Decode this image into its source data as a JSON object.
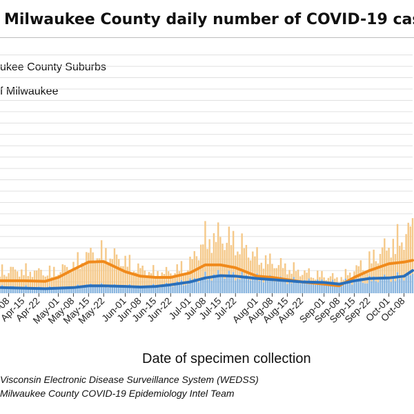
{
  "title": "Milwaukee County daily number of COVID-19 case",
  "xlabel": "Date of specimen collection",
  "sources": [
    "Visconsin Electronic Disease Surveillance System (WEDSS)",
    "Milwaukee County COVID-19 Epidemiology Intel Team"
  ],
  "legend": {
    "suburbs": "ukee County Suburbs",
    "city": "f Milwaukee"
  },
  "colors": {
    "suburbs_bar": "#f5c98a",
    "suburbs_line": "#f08a1c",
    "city_bar": "#8ab6df",
    "city_line": "#2a6fba",
    "grid": "#e0e0e0"
  },
  "chart_data": {
    "type": "bar",
    "x_label": "Date of specimen collection",
    "ylim": [
      0,
      450
    ],
    "grid": true,
    "legend_position": "top-left",
    "x_start": "2020-04-04",
    "x_end": "2020-10-12",
    "tick_labels": [
      "Apr-08",
      "Apr-15",
      "Apr-22",
      "May-01",
      "May-08",
      "May-15",
      "May-22",
      "Jun-01",
      "Jun-08",
      "Jun-15",
      "Jun-22",
      "Jul-01",
      "Jul-08",
      "Jul-15",
      "Jul-22",
      "Aug-01",
      "Aug-08",
      "Aug-15",
      "Aug-22",
      "Sep-01",
      "Sep-08",
      "Sep-15",
      "Sep-22",
      "Oct-01",
      "Oct-08"
    ],
    "tick_dates": [
      "2020-04-08",
      "2020-04-15",
      "2020-04-22",
      "2020-05-01",
      "2020-05-08",
      "2020-05-15",
      "2020-05-22",
      "2020-06-01",
      "2020-06-08",
      "2020-06-15",
      "2020-06-22",
      "2020-07-01",
      "2020-07-08",
      "2020-07-15",
      "2020-07-22",
      "2020-08-01",
      "2020-08-08",
      "2020-08-15",
      "2020-08-22",
      "2020-09-01",
      "2020-09-08",
      "2020-09-15",
      "2020-09-22",
      "2020-10-01",
      "2020-10-08"
    ],
    "series": [
      {
        "name": "City of Milwaukee",
        "style": "stacked-bar-bottom",
        "points": [
          [
            "2020-04-04",
            12
          ],
          [
            "2020-04-15",
            11
          ],
          [
            "2020-04-25",
            10
          ],
          [
            "2020-05-01",
            10
          ],
          [
            "2020-05-08",
            11
          ],
          [
            "2020-05-15",
            15
          ],
          [
            "2020-05-22",
            14
          ],
          [
            "2020-06-01",
            13
          ],
          [
            "2020-06-08",
            12
          ],
          [
            "2020-06-15",
            13
          ],
          [
            "2020-06-22",
            16
          ],
          [
            "2020-07-01",
            22
          ],
          [
            "2020-07-08",
            30
          ],
          [
            "2020-07-15",
            34
          ],
          [
            "2020-07-22",
            32
          ],
          [
            "2020-08-01",
            28
          ],
          [
            "2020-08-08",
            26
          ],
          [
            "2020-08-15",
            23
          ],
          [
            "2020-08-22",
            22
          ],
          [
            "2020-09-01",
            20
          ],
          [
            "2020-09-08",
            19
          ],
          [
            "2020-09-15",
            22
          ],
          [
            "2020-09-22",
            25
          ],
          [
            "2020-10-01",
            28
          ],
          [
            "2020-10-08",
            30
          ],
          [
            "2020-10-12",
            31
          ]
        ]
      },
      {
        "name": "Milwaukee County Suburbs",
        "style": "stacked-bar-top",
        "points": [
          [
            "2020-04-04",
            30
          ],
          [
            "2020-04-15",
            30
          ],
          [
            "2020-04-25",
            28
          ],
          [
            "2020-05-01",
            31
          ],
          [
            "2020-05-08",
            40
          ],
          [
            "2020-05-15",
            55
          ],
          [
            "2020-05-22",
            60
          ],
          [
            "2020-06-01",
            45
          ],
          [
            "2020-06-08",
            32
          ],
          [
            "2020-06-15",
            25
          ],
          [
            "2020-06-22",
            22
          ],
          [
            "2020-07-01",
            32
          ],
          [
            "2020-07-08",
            70
          ],
          [
            "2020-07-15",
            68
          ],
          [
            "2020-07-22",
            62
          ],
          [
            "2020-08-01",
            37
          ],
          [
            "2020-08-08",
            30
          ],
          [
            "2020-08-15",
            24
          ],
          [
            "2020-08-22",
            16
          ],
          [
            "2020-09-01",
            12
          ],
          [
            "2020-09-08",
            8
          ],
          [
            "2020-09-15",
            20
          ],
          [
            "2020-09-22",
            35
          ],
          [
            "2020-10-01",
            58
          ],
          [
            "2020-10-08",
            72
          ],
          [
            "2020-10-12",
            88
          ]
        ]
      },
      {
        "name": "7-day average (city)",
        "style": "line",
        "points": [
          [
            "2020-04-04",
            10
          ],
          [
            "2020-04-15",
            9
          ],
          [
            "2020-04-25",
            8
          ],
          [
            "2020-05-01",
            9
          ],
          [
            "2020-05-08",
            10
          ],
          [
            "2020-05-15",
            13
          ],
          [
            "2020-05-22",
            13
          ],
          [
            "2020-06-01",
            12
          ],
          [
            "2020-06-08",
            11
          ],
          [
            "2020-06-15",
            12
          ],
          [
            "2020-06-22",
            15
          ],
          [
            "2020-07-01",
            20
          ],
          [
            "2020-07-08",
            27
          ],
          [
            "2020-07-15",
            31
          ],
          [
            "2020-07-22",
            30
          ],
          [
            "2020-08-01",
            26
          ],
          [
            "2020-08-08",
            24
          ],
          [
            "2020-08-15",
            22
          ],
          [
            "2020-08-22",
            20
          ],
          [
            "2020-09-01",
            19
          ],
          [
            "2020-09-08",
            16
          ],
          [
            "2020-09-15",
            22
          ],
          [
            "2020-09-22",
            26
          ],
          [
            "2020-10-01",
            27
          ],
          [
            "2020-10-08",
            30
          ],
          [
            "2020-10-12",
            40
          ]
        ]
      },
      {
        "name": "7-day average (suburbs)",
        "style": "line",
        "points": [
          [
            "2020-04-04",
            22
          ],
          [
            "2020-04-15",
            22
          ],
          [
            "2020-04-25",
            21
          ],
          [
            "2020-05-01",
            28
          ],
          [
            "2020-05-08",
            42
          ],
          [
            "2020-05-15",
            55
          ],
          [
            "2020-05-22",
            56
          ],
          [
            "2020-06-01",
            38
          ],
          [
            "2020-06-08",
            30
          ],
          [
            "2020-06-15",
            28
          ],
          [
            "2020-06-22",
            28
          ],
          [
            "2020-07-01",
            36
          ],
          [
            "2020-07-08",
            50
          ],
          [
            "2020-07-15",
            50
          ],
          [
            "2020-07-22",
            45
          ],
          [
            "2020-08-01",
            30
          ],
          [
            "2020-08-08",
            28
          ],
          [
            "2020-08-15",
            24
          ],
          [
            "2020-08-22",
            20
          ],
          [
            "2020-09-01",
            16
          ],
          [
            "2020-09-08",
            13
          ],
          [
            "2020-09-15",
            28
          ],
          [
            "2020-09-22",
            40
          ],
          [
            "2020-10-01",
            52
          ],
          [
            "2020-10-08",
            55
          ],
          [
            "2020-10-12",
            58
          ]
        ]
      }
    ]
  }
}
